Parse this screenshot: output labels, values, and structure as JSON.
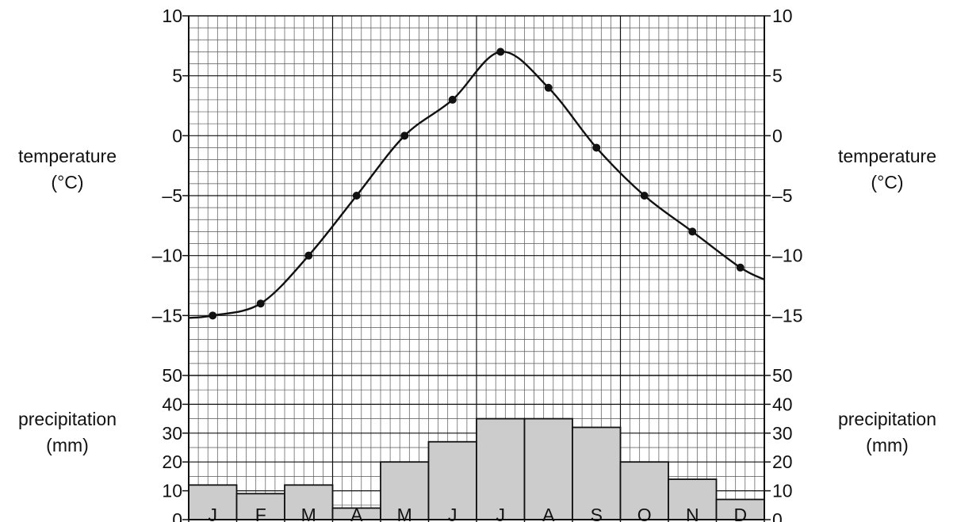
{
  "chart_data": [
    {
      "type": "line",
      "categories": [
        "J",
        "F",
        "M",
        "A",
        "M",
        "J",
        "J",
        "A",
        "S",
        "O",
        "N",
        "D"
      ],
      "values": [
        -15,
        -14,
        -10,
        -5,
        0,
        3,
        7,
        4,
        -1,
        -5,
        -8,
        -11
      ],
      "ylabel": "temperature\n(°C)",
      "ylabel_lines": [
        "temperature",
        "(°C)"
      ],
      "ylim": [
        -20,
        10
      ],
      "yticks": [
        10,
        5,
        0,
        -5,
        -10,
        -15
      ],
      "ytick_labels": [
        "10",
        "5",
        "0",
        "–5",
        "–10",
        "–15"
      ],
      "grid": true,
      "color": "#111111"
    },
    {
      "type": "bar",
      "categories": [
        "J",
        "F",
        "M",
        "A",
        "M",
        "J",
        "J",
        "A",
        "S",
        "O",
        "N",
        "D"
      ],
      "values": [
        12,
        9,
        12,
        4,
        20,
        27,
        35,
        35,
        32,
        20,
        14,
        7
      ],
      "ylabel": "precipitation\n(mm)",
      "ylabel_lines": [
        "precipitation",
        "(mm)"
      ],
      "ylim": [
        0,
        50
      ],
      "yticks": [
        0,
        10,
        20,
        30,
        40,
        50
      ],
      "ytick_labels": [
        "0",
        "10",
        "20",
        "30",
        "40",
        "50"
      ],
      "grid": true,
      "bar_color": "#cccccc"
    }
  ]
}
